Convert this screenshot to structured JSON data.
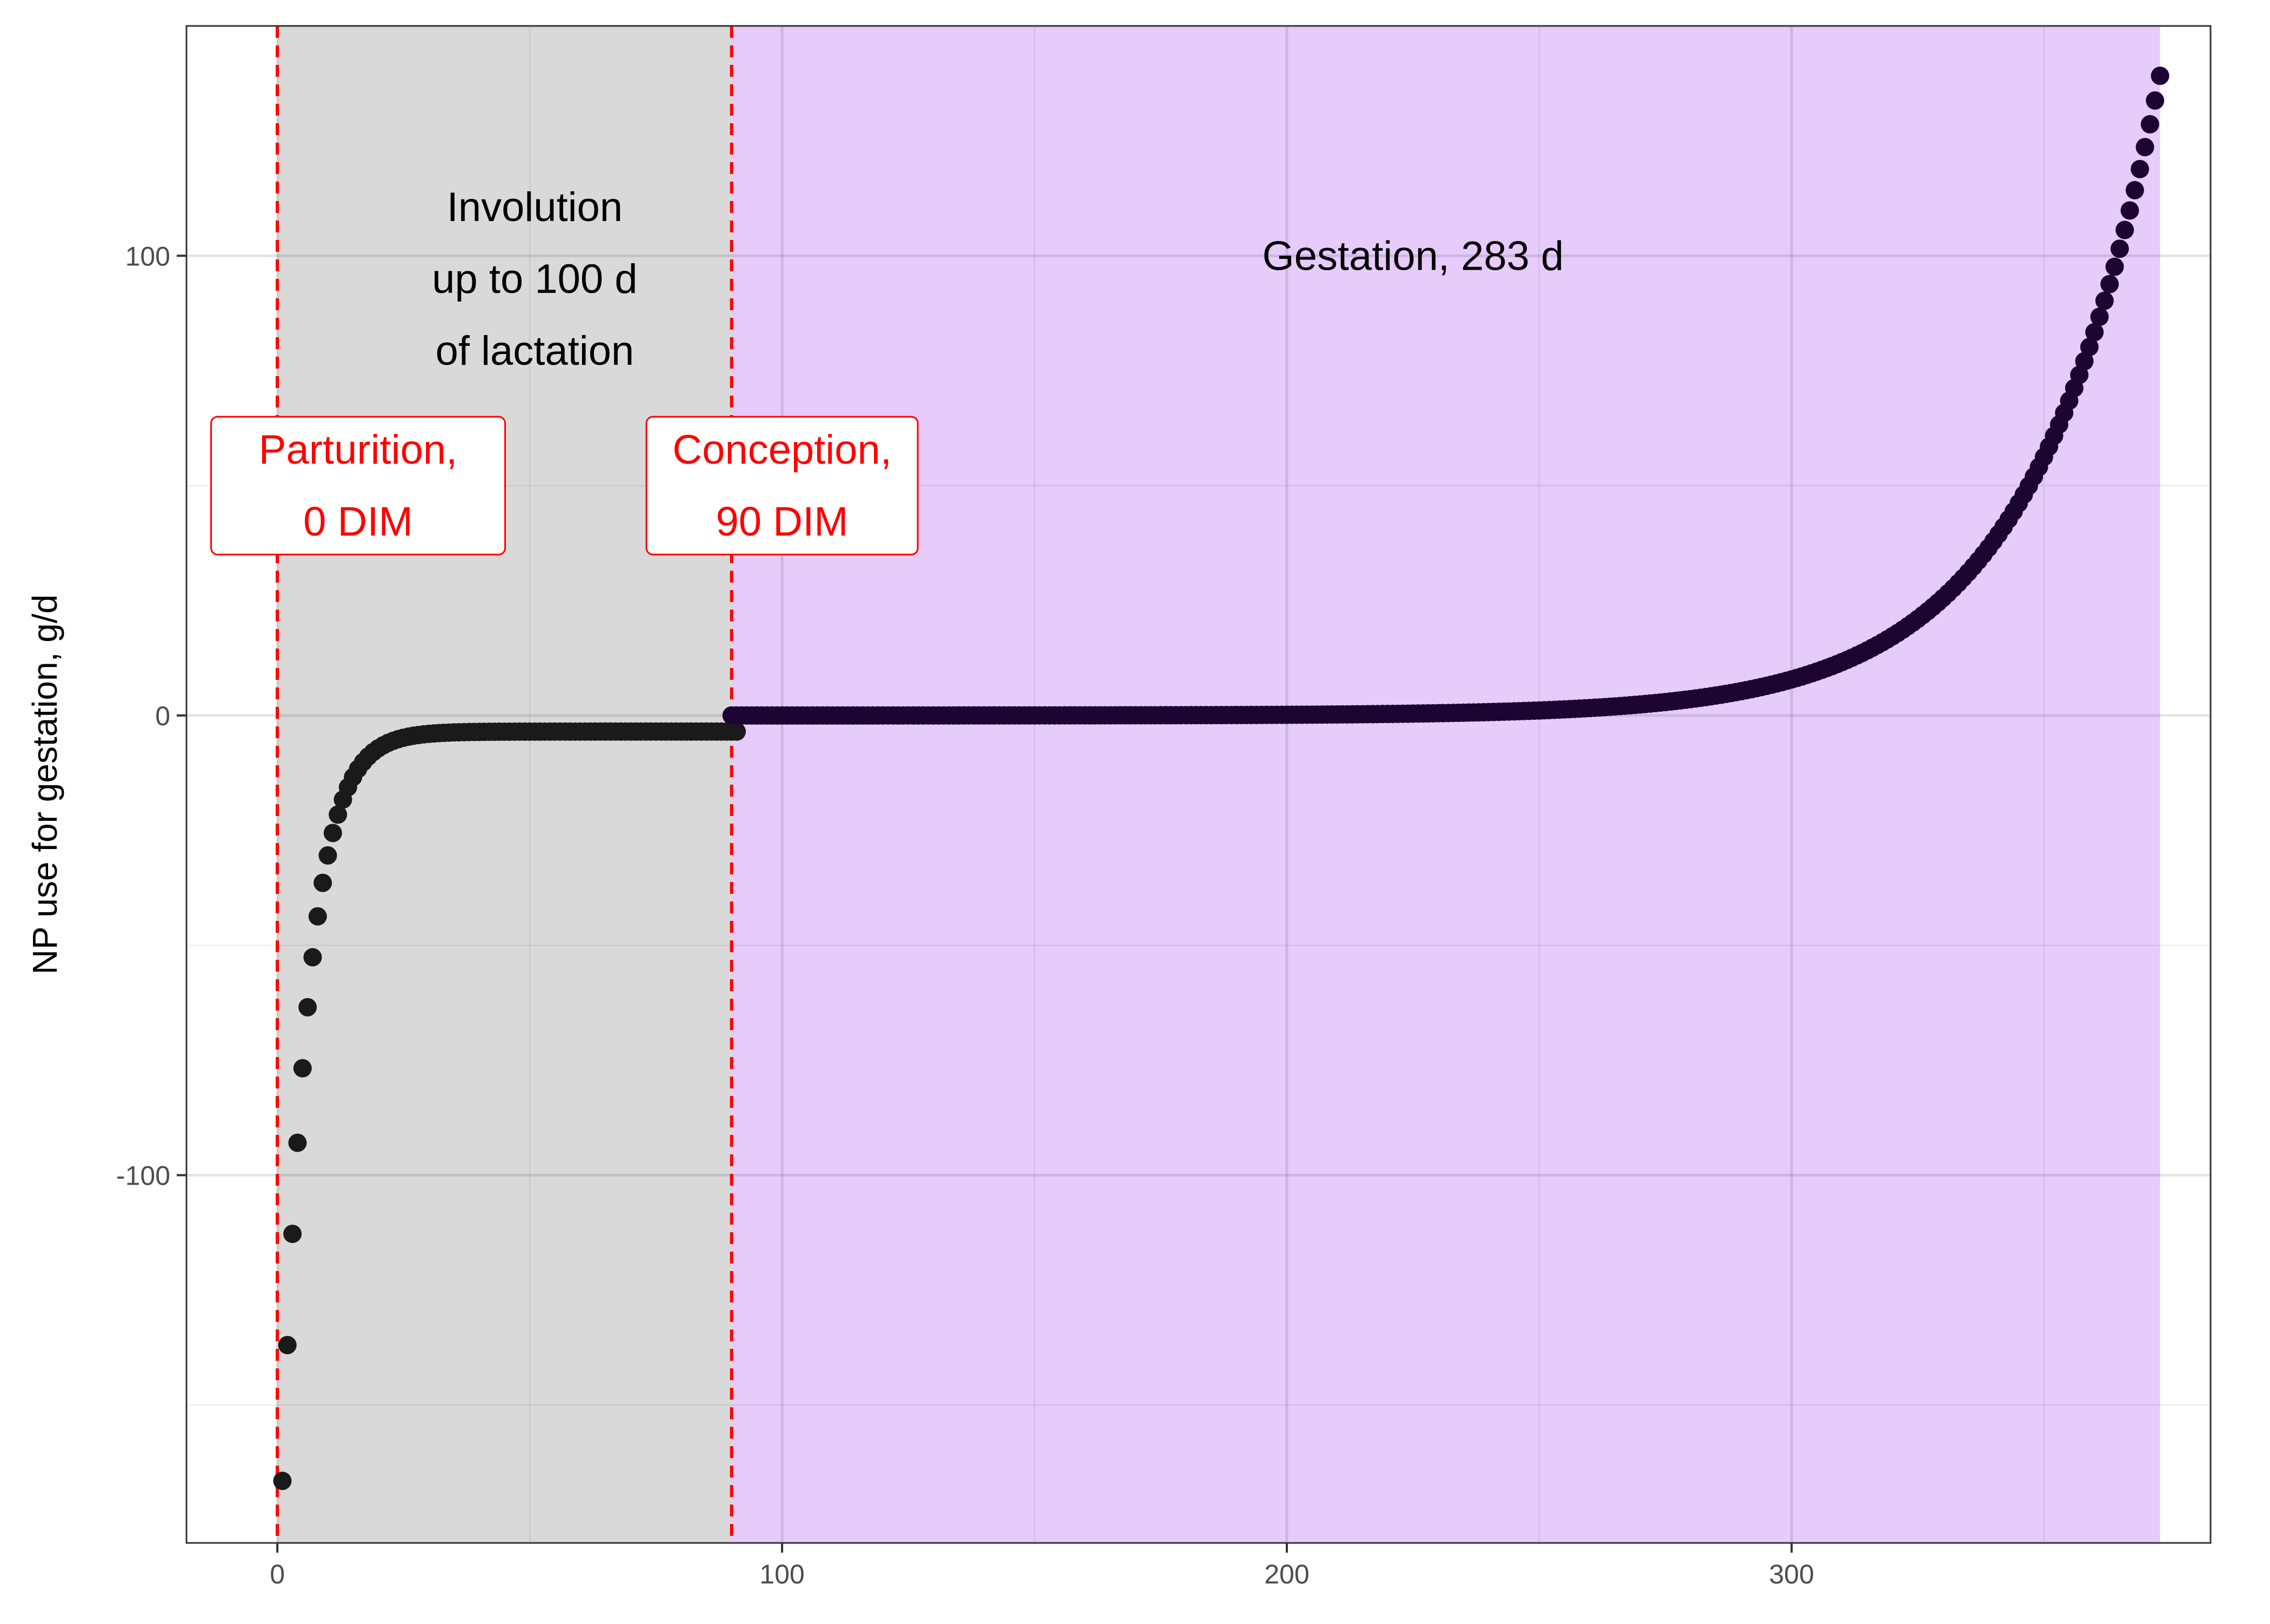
{
  "chart_data": {
    "type": "scatter",
    "title": "",
    "xlabel": "",
    "ylabel": "NP use for gestation, g/d",
    "xlim": [
      -18,
      383
    ],
    "ylim": [
      -180,
      150
    ],
    "x_ticks": [
      0,
      100,
      200,
      300
    ],
    "y_ticks": [
      -100,
      0,
      100
    ],
    "grid": true,
    "legend": "none",
    "colors": {
      "involution_band": "#d9d9d9",
      "gestation_band": "#e6cbfb",
      "event_line": "#ff0000",
      "involution_points": "#1a1a1a",
      "gestation_points": "#1c0532"
    },
    "regions": [
      {
        "name": "involution",
        "x_start": 0,
        "x_end": 90,
        "label": "Involution\nup to 100 d\nof lactation",
        "label_x": 51,
        "label_y": 95
      },
      {
        "name": "gestation",
        "x_start": 90,
        "x_end": 373,
        "label": "Gestation, 283 d",
        "label_x": 225,
        "label_y": 100
      }
    ],
    "events": [
      {
        "x": 0,
        "label": "Parturition,\n0 DIM",
        "label_x": 16,
        "label_y": 50
      },
      {
        "x": 90,
        "label": "Conception,\n90 DIM",
        "label_x": 100,
        "label_y": 50
      }
    ],
    "series": [
      {
        "segment": "involution",
        "model": "y = -3.5 - 163 * exp(-0.2 * (x - 1))",
        "x_start": 1,
        "x_end": 91,
        "y_start": -166.5,
        "y_end": -3.5
      },
      {
        "segment": "gestation",
        "model": "y = 0.002 * exp(0.0394 * (x - 90))",
        "x_start": 90,
        "x_end": 373,
        "y_start": 0.0,
        "y_end": 137
      }
    ]
  }
}
